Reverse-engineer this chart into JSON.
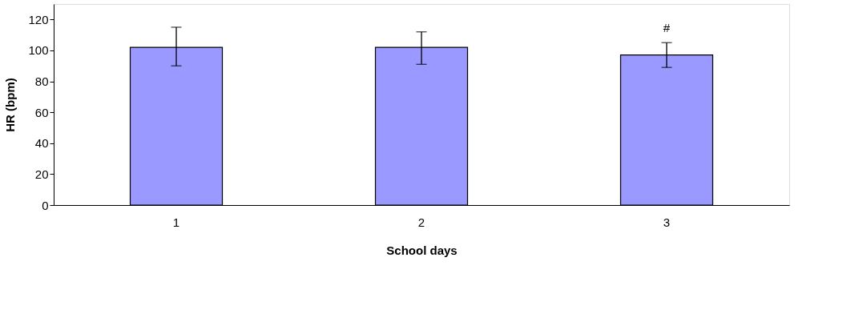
{
  "chart_data": {
    "type": "bar",
    "xlabel": "School days",
    "ylabel": "HR (bpm)",
    "categories": [
      "1",
      "2",
      "3"
    ],
    "values": [
      102,
      102,
      97
    ],
    "errors": [
      [
        90,
        115
      ],
      [
        91,
        112
      ],
      [
        89,
        105
      ]
    ],
    "color": "#9999ff",
    "ylim": [
      0,
      130
    ],
    "yticks": [
      0,
      20,
      40,
      60,
      80,
      100,
      120
    ],
    "annotations": [
      "#"
    ],
    "grid": false
  }
}
